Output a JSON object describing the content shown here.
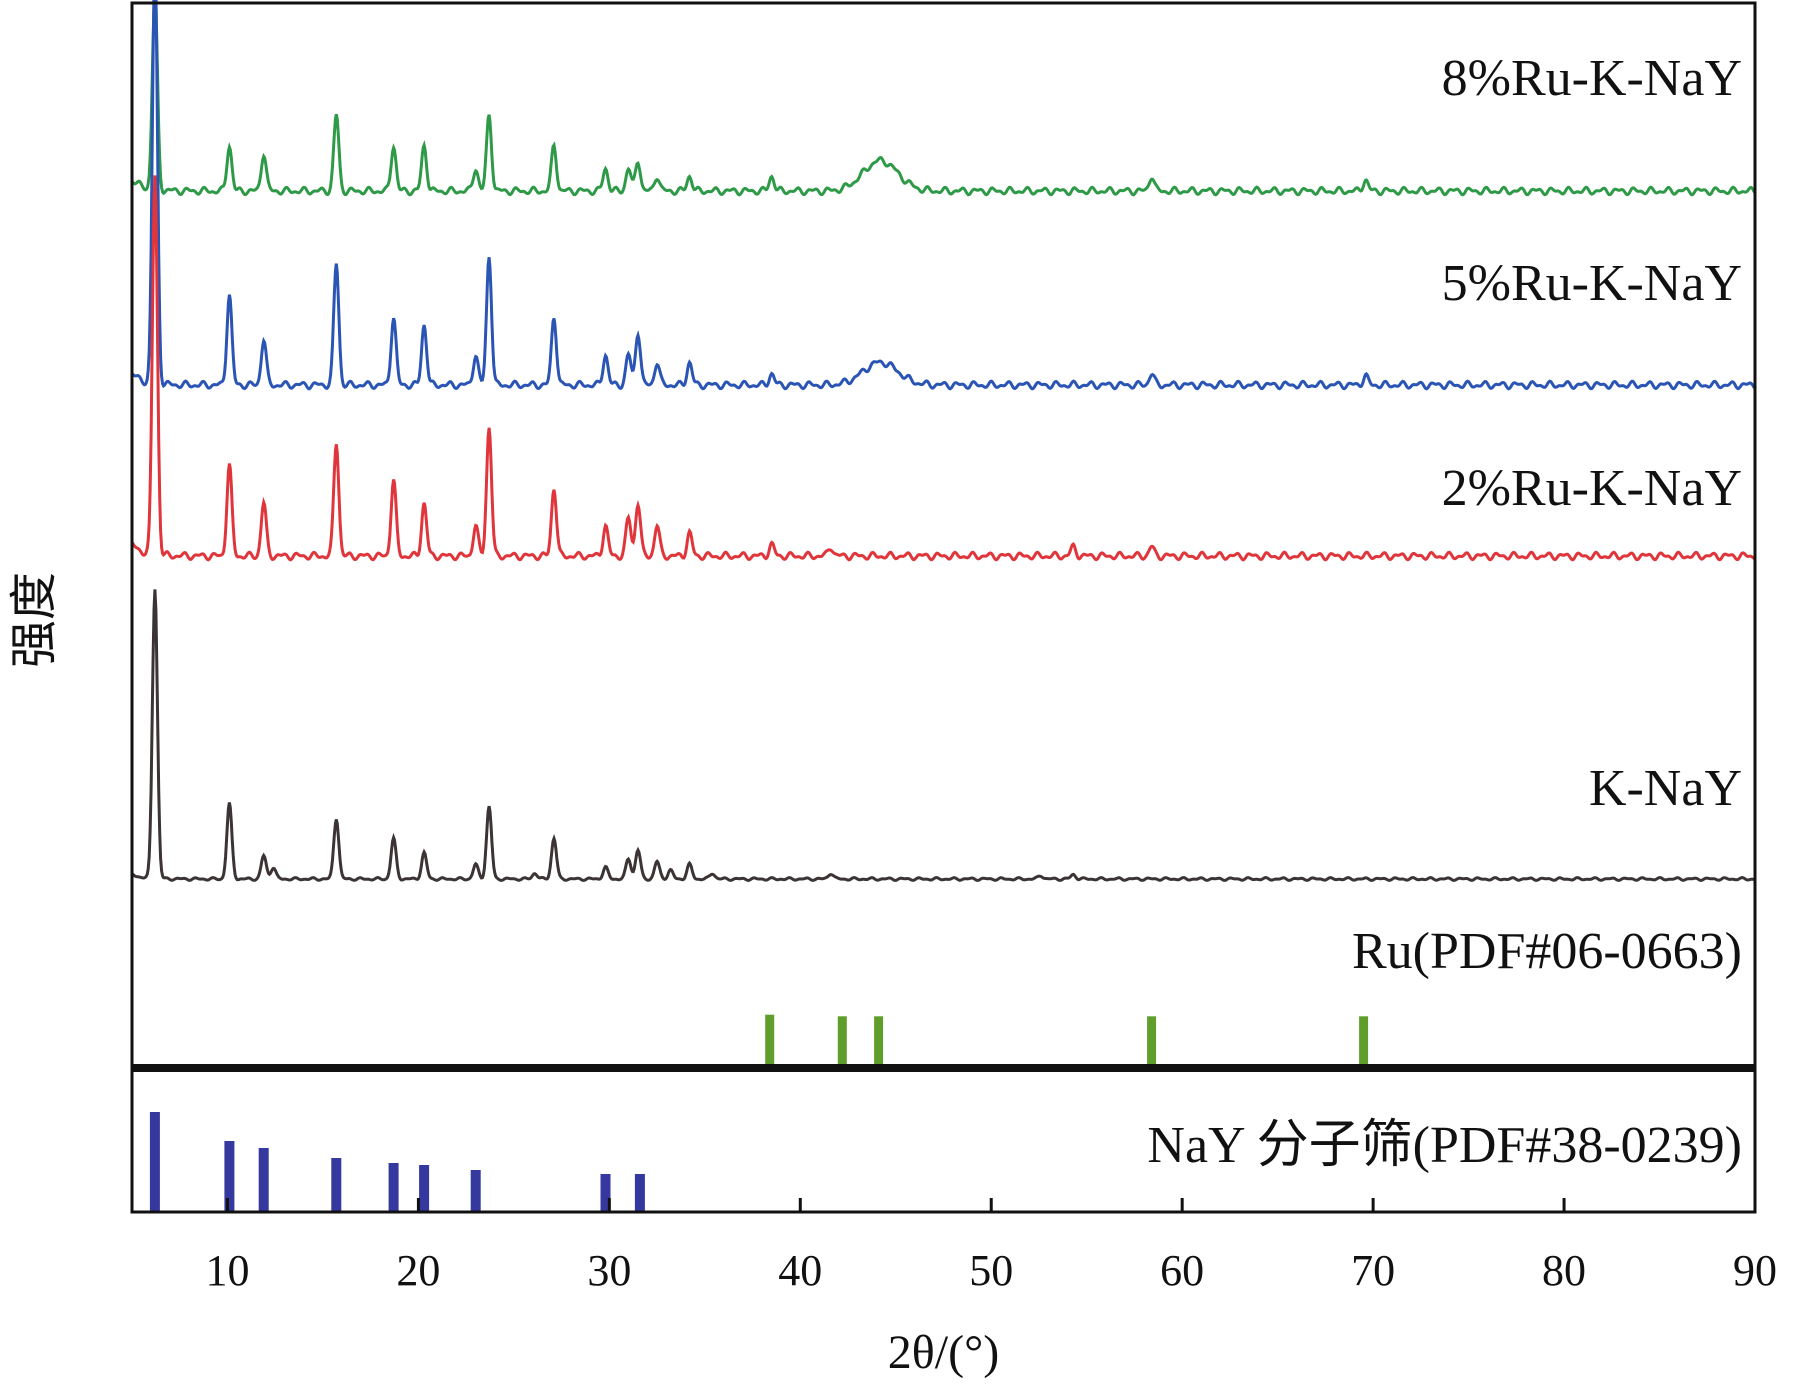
{
  "chart_data": {
    "type": "line",
    "xlabel": "2θ/(°)",
    "ylabel": "强度",
    "xlim": [
      5,
      90
    ],
    "x_ticks": [
      10,
      20,
      30,
      40,
      50,
      60,
      70,
      80,
      90
    ],
    "x_tick_labels": [
      "10",
      "20",
      "30",
      "40",
      "50",
      "60",
      "70",
      "80",
      "90"
    ],
    "y_ticks_shown": false,
    "grid": false,
    "series": [
      {
        "name": "8%Ru-K-NaY",
        "color": "#2e9a48",
        "peaks": [
          {
            "x": 6.2,
            "h": 0.26
          },
          {
            "x": 10.1,
            "h": 0.06
          },
          {
            "x": 11.9,
            "h": 0.05
          },
          {
            "x": 15.7,
            "h": 0.1
          },
          {
            "x": 18.7,
            "h": 0.06
          },
          {
            "x": 20.3,
            "h": 0.06
          },
          {
            "x": 23.0,
            "h": 0.03
          },
          {
            "x": 23.7,
            "h": 0.1
          },
          {
            "x": 27.1,
            "h": 0.06
          },
          {
            "x": 29.8,
            "h": 0.03
          },
          {
            "x": 31.0,
            "h": 0.03
          },
          {
            "x": 31.5,
            "h": 0.04
          },
          {
            "x": 32.5,
            "h": 0.02
          },
          {
            "x": 34.2,
            "h": 0.02
          },
          {
            "x": 38.5,
            "h": 0.02
          },
          {
            "x": 44.2,
            "h": 0.04,
            "w": 0.9
          },
          {
            "x": 58.4,
            "h": 0.02
          },
          {
            "x": 69.6,
            "h": 0.015
          }
        ]
      },
      {
        "name": "5%Ru-K-NaY",
        "color": "#2b55b4",
        "peaks": [
          {
            "x": 6.2,
            "h": 0.56
          },
          {
            "x": 10.1,
            "h": 0.12
          },
          {
            "x": 11.9,
            "h": 0.06
          },
          {
            "x": 15.7,
            "h": 0.16
          },
          {
            "x": 18.7,
            "h": 0.09
          },
          {
            "x": 20.3,
            "h": 0.08
          },
          {
            "x": 23.0,
            "h": 0.04
          },
          {
            "x": 23.7,
            "h": 0.17
          },
          {
            "x": 27.1,
            "h": 0.09
          },
          {
            "x": 29.8,
            "h": 0.04
          },
          {
            "x": 31.0,
            "h": 0.04
          },
          {
            "x": 31.5,
            "h": 0.07
          },
          {
            "x": 32.5,
            "h": 0.03
          },
          {
            "x": 34.2,
            "h": 0.03
          },
          {
            "x": 38.5,
            "h": 0.015
          },
          {
            "x": 44.2,
            "h": 0.03,
            "w": 0.9
          },
          {
            "x": 58.4,
            "h": 0.015
          },
          {
            "x": 69.6,
            "h": 0.012
          }
        ]
      },
      {
        "name": "2%Ru-K-NaY",
        "color": "#e0353b",
        "peaks": [
          {
            "x": 6.2,
            "h": 0.5
          },
          {
            "x": 10.1,
            "h": 0.12
          },
          {
            "x": 11.9,
            "h": 0.07
          },
          {
            "x": 15.7,
            "h": 0.15
          },
          {
            "x": 18.7,
            "h": 0.1
          },
          {
            "x": 20.3,
            "h": 0.07
          },
          {
            "x": 23.0,
            "h": 0.04
          },
          {
            "x": 23.7,
            "h": 0.17
          },
          {
            "x": 27.1,
            "h": 0.09
          },
          {
            "x": 29.8,
            "h": 0.04
          },
          {
            "x": 31.0,
            "h": 0.05
          },
          {
            "x": 31.5,
            "h": 0.07
          },
          {
            "x": 32.5,
            "h": 0.04
          },
          {
            "x": 34.2,
            "h": 0.03
          },
          {
            "x": 38.5,
            "h": 0.015
          },
          {
            "x": 41.6,
            "h": 0.012
          },
          {
            "x": 54.3,
            "h": 0.012
          },
          {
            "x": 58.4,
            "h": 0.012
          }
        ]
      },
      {
        "name": "K-NaY",
        "color": "#3c3434",
        "peaks": [
          {
            "x": 6.2,
            "h": 1.0
          },
          {
            "x": 10.1,
            "h": 0.26
          },
          {
            "x": 11.9,
            "h": 0.08
          },
          {
            "x": 12.4,
            "h": 0.04
          },
          {
            "x": 15.7,
            "h": 0.21
          },
          {
            "x": 18.7,
            "h": 0.14
          },
          {
            "x": 20.3,
            "h": 0.09
          },
          {
            "x": 23.0,
            "h": 0.05
          },
          {
            "x": 23.7,
            "h": 0.25
          },
          {
            "x": 26.1,
            "h": 0.02
          },
          {
            "x": 27.1,
            "h": 0.14
          },
          {
            "x": 29.8,
            "h": 0.04
          },
          {
            "x": 31.0,
            "h": 0.07
          },
          {
            "x": 31.5,
            "h": 0.1
          },
          {
            "x": 32.5,
            "h": 0.06
          },
          {
            "x": 33.2,
            "h": 0.03
          },
          {
            "x": 34.2,
            "h": 0.05
          },
          {
            "x": 35.4,
            "h": 0.02
          },
          {
            "x": 41.6,
            "h": 0.02
          },
          {
            "x": 52.6,
            "h": 0.012
          },
          {
            "x": 54.3,
            "h": 0.015
          }
        ]
      }
    ],
    "reference_patterns": [
      {
        "name": "Ru(PDF#06-0663)",
        "color": "#5f9e2a",
        "x": [
          38.4,
          42.2,
          44.1,
          58.4,
          69.5
        ],
        "values": [
          0.95,
          0.92,
          0.92,
          0.92,
          0.92
        ]
      },
      {
        "name": "NaY 分子筛(PDF#38-0239)",
        "color": "#35389e",
        "x": [
          6.2,
          10.1,
          11.9,
          15.7,
          18.7,
          20.3,
          23.0,
          29.8,
          31.6
        ],
        "values": [
          1.0,
          0.71,
          0.64,
          0.54,
          0.49,
          0.47,
          0.42,
          0.38,
          0.38
        ]
      }
    ]
  }
}
